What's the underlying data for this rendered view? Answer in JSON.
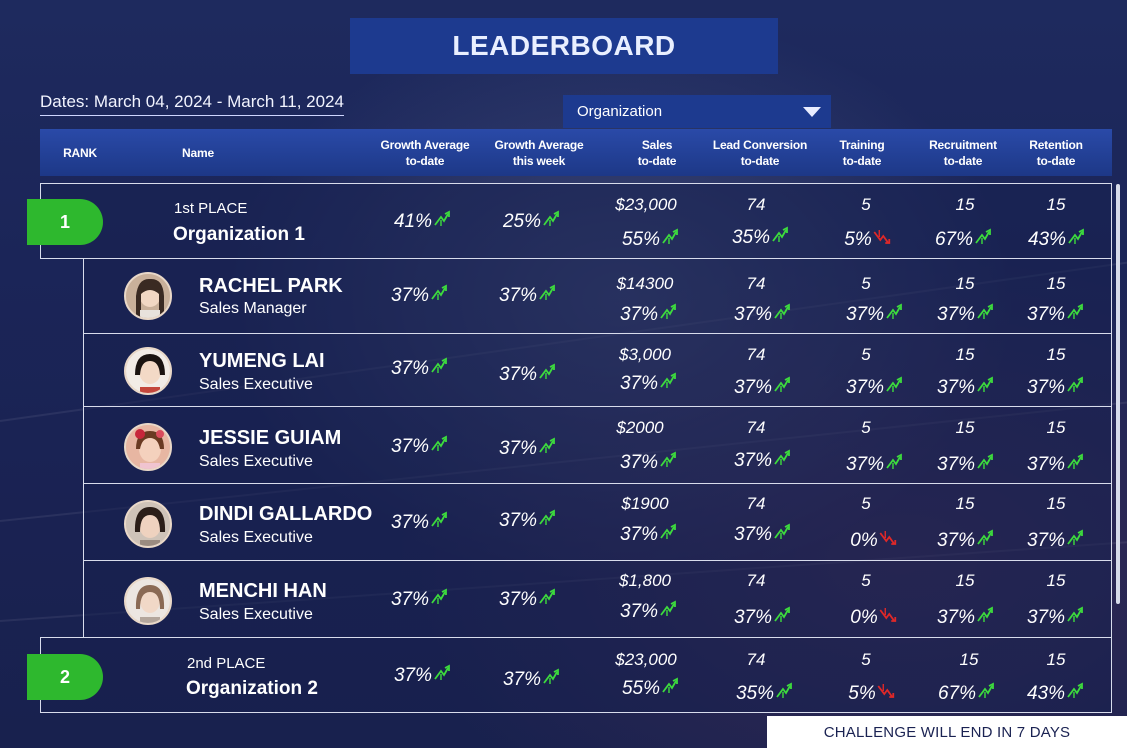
{
  "title": "LEADERBOARD",
  "dates_label": "Dates: March 04, 2024 - March 11, 2024",
  "filter": {
    "selected": "Organization"
  },
  "columns": {
    "rank": "RANK",
    "name": "Name",
    "growth_avg_todate": [
      "Growth Average",
      "to-date"
    ],
    "growth_avg_week": [
      "Growth Average",
      "this week"
    ],
    "sales": [
      "Sales",
      "to-date"
    ],
    "lead_conversion": [
      "Lead Conversion",
      "to-date"
    ],
    "training": [
      "Training",
      "to-date"
    ],
    "recruitment": [
      "Recruitment",
      "to-date"
    ],
    "retention": [
      "Retention",
      "to-date"
    ]
  },
  "organizations": [
    {
      "rank": "1",
      "place": "1st PLACE",
      "name": "Organization 1",
      "growth_todate": "41%",
      "growth_week": "25%",
      "sales_amount": "$23,000",
      "sales_pct": "55%",
      "lead_value": "74",
      "lead_pct": "35%",
      "training_value": "5",
      "training_pct": "5%",
      "training_trend": "down",
      "recruit_value": "15",
      "recruit_pct": "67%",
      "retention_value": "15",
      "retention_pct": "43%"
    },
    {
      "rank": "2",
      "place": "2nd PLACE",
      "name": "Organization 2",
      "growth_todate": "37%",
      "growth_week": "37%",
      "sales_amount": "$23,000",
      "sales_pct": "55%",
      "lead_value": "74",
      "lead_pct": "35%",
      "training_value": "5",
      "training_pct": "5%",
      "training_trend": "down",
      "recruit_value": "15",
      "recruit_pct": "67%",
      "retention_value": "15",
      "retention_pct": "43%"
    }
  ],
  "members": [
    {
      "name": "RACHEL PARK",
      "role": "Sales Manager",
      "growth_todate": "37%",
      "growth_week": "37%",
      "sales_amount": "$14300",
      "sales_pct": "37%",
      "lead_value": "74",
      "lead_pct": "37%",
      "training_value": "5",
      "training_pct": "37%",
      "training_trend": "up",
      "recruit_value": "15",
      "recruit_pct": "37%",
      "retention_value": "15",
      "retention_pct": "37%"
    },
    {
      "name": "YUMENG LAI",
      "role": "Sales Executive",
      "growth_todate": "37%",
      "growth_week": "37%",
      "sales_amount": "$3,000",
      "sales_pct": "37%",
      "lead_value": "74",
      "lead_pct": "37%",
      "training_value": "5",
      "training_pct": "37%",
      "training_trend": "up",
      "recruit_value": "15",
      "recruit_pct": "37%",
      "retention_value": "15",
      "retention_pct": "37%"
    },
    {
      "name": "JESSIE GUIAM",
      "role": "Sales Executive",
      "growth_todate": "37%",
      "growth_week": "37%",
      "sales_amount": "$2000",
      "sales_pct": "37%",
      "lead_value": "74",
      "lead_pct": "37%",
      "training_value": "5",
      "training_pct": "37%",
      "training_trend": "up",
      "recruit_value": "15",
      "recruit_pct": "37%",
      "retention_value": "15",
      "retention_pct": "37%"
    },
    {
      "name": "DINDI GALLARDO",
      "role": "Sales Executive",
      "growth_todate": "37%",
      "growth_week": "37%",
      "sales_amount": "$1900",
      "sales_pct": "37%",
      "lead_value": "74",
      "lead_pct": "37%",
      "training_value": "5",
      "training_pct": "0%",
      "training_trend": "down",
      "recruit_value": "15",
      "recruit_pct": "37%",
      "retention_value": "15",
      "retention_pct": "37%"
    },
    {
      "name": "MENCHI HAN",
      "role": "Sales Executive",
      "growth_todate": "37%",
      "growth_week": "37%",
      "sales_amount": "$1,800",
      "sales_pct": "37%",
      "lead_value": "74",
      "lead_pct": "37%",
      "training_value": "5",
      "training_pct": "0%",
      "training_trend": "down",
      "recruit_value": "15",
      "recruit_pct": "37%",
      "retention_value": "15",
      "retention_pct": "37%"
    }
  ],
  "footer": "CHALLENGE WILL END IN 7 DAYS",
  "colors": {
    "up": "#3ddc3d",
    "down": "#e02828",
    "badge": "#2eb82e",
    "header": "#1d3a8f"
  },
  "icons": {
    "up": "trend-up-arrow-icon",
    "down": "trend-down-arrow-icon"
  }
}
